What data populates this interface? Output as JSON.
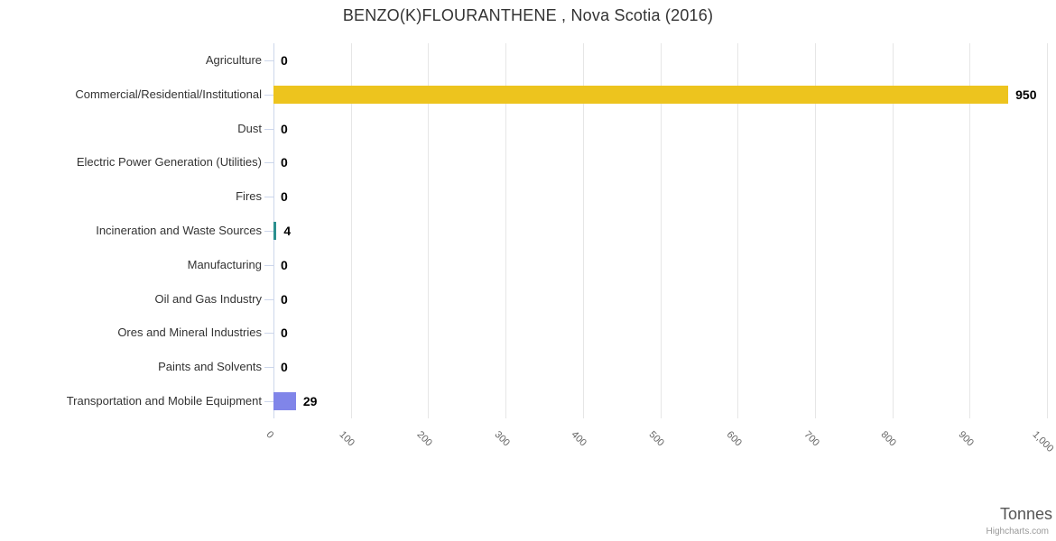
{
  "chart_data": {
    "type": "bar",
    "orientation": "horizontal",
    "title": "BENZO(K)FLOURANTHENE , Nova Scotia (2016)",
    "categories": [
      "Agriculture",
      "Commercial/Residential/Institutional",
      "Dust",
      "Electric Power Generation (Utilities)",
      "Fires",
      "Incineration and Waste Sources",
      "Manufacturing",
      "Oil and Gas Industry",
      "Ores and Mineral Industries",
      "Paints and Solvents",
      "Transportation and Mobile Equipment"
    ],
    "values": [
      0,
      950,
      0,
      0,
      0,
      4,
      0,
      0,
      0,
      0,
      29
    ],
    "value_labels": [
      "0",
      "950",
      "0",
      "0",
      "0",
      "4",
      "0",
      "0",
      "0",
      "0",
      "29"
    ],
    "bar_colors": [
      null,
      "#EDC41E",
      null,
      null,
      null,
      "#2B908F",
      null,
      null,
      null,
      null,
      "#8085E9"
    ],
    "xlabel": "Tonnes",
    "xlim": [
      0,
      1000
    ],
    "x_ticks": [
      0,
      100,
      200,
      300,
      400,
      500,
      600,
      700,
      800,
      900,
      1000
    ],
    "x_tick_labels": [
      "0",
      "100",
      "200",
      "300",
      "400",
      "500",
      "600",
      "700",
      "800",
      "900",
      "1,000"
    ],
    "x_tick_rotation_deg": 45,
    "grid": true,
    "legend": false
  },
  "credits": {
    "label": "Highcharts.com"
  },
  "colors": {
    "grid_line": "#e6e6e6",
    "axis_line": "#ccd6eb",
    "title_text": "#333333",
    "category_text": "#333333",
    "tick_text": "#666666",
    "data_label_text": "#000000",
    "axis_title_text": "#555555",
    "credits_text": "#999999",
    "background": "#ffffff"
  }
}
